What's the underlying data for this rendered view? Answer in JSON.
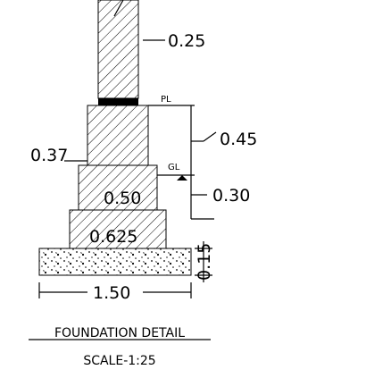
{
  "dimensions": {
    "wall_width": "0.25",
    "plinth_level": "PL",
    "plinth_height": "0.45",
    "step_width": "0.37",
    "ground_level": "GL",
    "step_2_width": "0.50",
    "depth_below_gl": "0.30",
    "step_3_width": "0.625",
    "pcc_thickness": "0.15",
    "pcc_width": "1.50"
  },
  "caption": {
    "title": "FOUNDATION DETAIL",
    "scale": "SCALE-1:25"
  }
}
